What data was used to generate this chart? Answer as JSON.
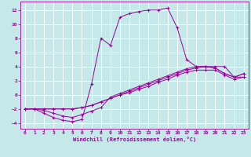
{
  "xlabel": "Windchill (Refroidissement éolien,°C)",
  "xlim": [
    -0.5,
    23.5
  ],
  "ylim": [
    -4.8,
    13.2
  ],
  "xticks": [
    0,
    1,
    2,
    3,
    4,
    5,
    6,
    7,
    8,
    9,
    10,
    11,
    12,
    13,
    14,
    15,
    16,
    17,
    18,
    19,
    20,
    21,
    22,
    23
  ],
  "yticks": [
    -4,
    -2,
    0,
    2,
    4,
    6,
    8,
    10,
    12
  ],
  "bg_color": "#c5e8e8",
  "line_color": "#990099",
  "grid_color": "#ffffff",
  "lines": [
    {
      "x": [
        0,
        1,
        2,
        3,
        4,
        5,
        6,
        7,
        8,
        9,
        10,
        11,
        12,
        13,
        14,
        15,
        16,
        17,
        18,
        19,
        20,
        21,
        22,
        23
      ],
      "y": [
        -2,
        -2,
        -2.6,
        -3.2,
        -3.6,
        -3.8,
        -3.5,
        1.5,
        8.0,
        7.0,
        11.0,
        11.5,
        11.8,
        12.0,
        12.0,
        12.3,
        9.5,
        5.0,
        4.0,
        4.0,
        4.0,
        4.0,
        2.5,
        2.5
      ]
    },
    {
      "x": [
        0,
        1,
        2,
        3,
        4,
        5,
        6,
        7,
        8,
        9,
        10,
        11,
        12,
        13,
        14,
        15,
        16,
        17,
        18,
        19,
        20,
        21,
        22,
        23
      ],
      "y": [
        -2,
        -2,
        -2.2,
        -2.6,
        -3.0,
        -3.2,
        -2.8,
        -2.3,
        -1.8,
        -0.3,
        0.2,
        0.7,
        1.2,
        1.7,
        2.2,
        2.7,
        3.2,
        3.7,
        4.0,
        4.0,
        3.8,
        3.0,
        2.5,
        3.0
      ]
    },
    {
      "x": [
        0,
        1,
        2,
        3,
        4,
        5,
        6,
        7,
        8,
        9,
        10,
        11,
        12,
        13,
        14,
        15,
        16,
        17,
        18,
        19,
        20,
        21,
        22,
        23
      ],
      "y": [
        -2,
        -2,
        -2,
        -2,
        -2,
        -2,
        -1.8,
        -1.5,
        -1.0,
        -0.5,
        0.0,
        0.5,
        1.0,
        1.5,
        2.0,
        2.5,
        3.0,
        3.5,
        3.8,
        4.0,
        3.8,
        3.0,
        2.5,
        3.0
      ]
    },
    {
      "x": [
        0,
        1,
        2,
        3,
        4,
        5,
        6,
        7,
        8,
        9,
        10,
        11,
        12,
        13,
        14,
        15,
        16,
        17,
        18,
        19,
        20,
        21,
        22,
        23
      ],
      "y": [
        -2,
        -2,
        -2,
        -2,
        -2,
        -2,
        -1.8,
        -1.5,
        -1.0,
        -0.5,
        0.0,
        0.3,
        0.8,
        1.2,
        1.8,
        2.2,
        2.8,
        3.2,
        3.5,
        3.5,
        3.5,
        2.8,
        2.2,
        2.5
      ]
    }
  ]
}
